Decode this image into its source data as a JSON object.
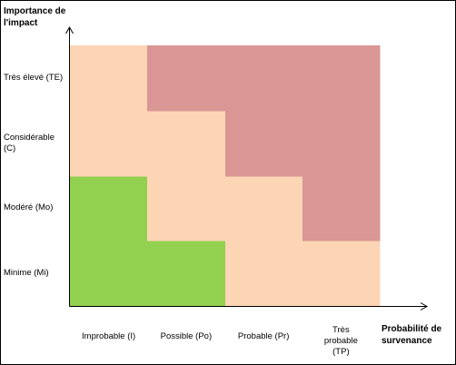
{
  "chart_data": {
    "type": "heatmap",
    "title": "",
    "ylabel": "Importance de l'impact",
    "xlabel": "Probabilité de survenance",
    "x_categories": [
      "Improbable (I)",
      "Possible (Po)",
      "Probable (Pr)",
      "Très probable (TP)"
    ],
    "y_categories": [
      "Minime (Mi)",
      "Modéré (Mo)",
      "Considérable (C)",
      "Très élevé (TE)"
    ],
    "zones": [
      "low",
      "medium",
      "high"
    ],
    "zone_colors": {
      "low": "#92d050",
      "medium": "#fcd5b5",
      "high": "#d99694"
    },
    "cells": [
      [
        "low",
        "low",
        "medium",
        "medium"
      ],
      [
        "low",
        "medium",
        "medium",
        "high"
      ],
      [
        "medium",
        "medium",
        "high",
        "high"
      ],
      [
        "medium",
        "high",
        "high",
        "high"
      ]
    ],
    "grid": false,
    "legend": "none"
  },
  "colors": {
    "axis": "#000000",
    "background": "#ffffff"
  }
}
